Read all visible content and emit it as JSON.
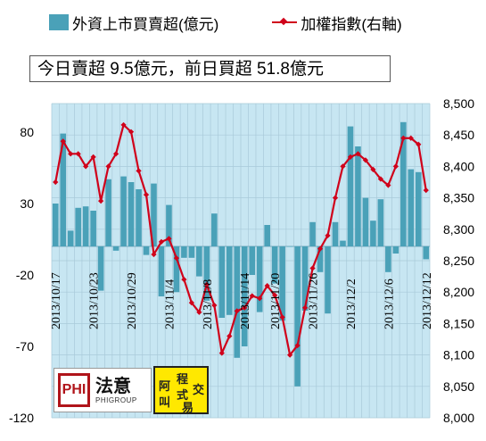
{
  "legend": {
    "bar_label": "外資上市買賣超(億元)",
    "line_label": "加權指數(右軸)"
  },
  "subtitle": "今日賣超 9.5億元，前日買超 51.8億元",
  "logos": {
    "phigroup_mark": "PHI",
    "phigroup_cn": "法意",
    "phigroup_en": "PHIGROUP",
    "exchange_chars": [
      "阿",
      "叫",
      "程",
      "式",
      "交",
      "易"
    ]
  },
  "colors": {
    "bar": "#4aa1b8",
    "line": "#d0021b",
    "plot_bg": "#c7e6f2",
    "grid": "#a9cad9"
  },
  "chart_data": {
    "type": "bar+line",
    "x_labels_shown": [
      "2013/10/17",
      "2013/10/23",
      "2013/10/29",
      "2013/11/4",
      "2013/11/8",
      "2013/11/14",
      "2013/11/20",
      "2013/11/26",
      "2013/12/2",
      "2013/12/6",
      "2013/12/12"
    ],
    "left_axis": {
      "ylim": [
        -120,
        100
      ],
      "ticks": [
        -120,
        -70,
        -20,
        30,
        80
      ]
    },
    "right_axis": {
      "ylim": [
        8000,
        8500
      ],
      "ticks": [
        "8,000",
        "8,050",
        "8,100",
        "8,150",
        "8,200",
        "8,250",
        "8,300",
        "8,350",
        "8,400",
        "8,450",
        "8,500"
      ]
    },
    "series": [
      {
        "type": "bar",
        "axis": "left",
        "name": "外資上市買賣超(億元)",
        "values": [
          30,
          79,
          11,
          27,
          28,
          25,
          -31,
          47,
          -3,
          49,
          45,
          40,
          -6,
          44,
          -35,
          29,
          -32,
          -8,
          -8,
          -21,
          -38,
          23,
          -50,
          -48,
          -78,
          -70,
          -20,
          -46,
          15,
          -26,
          -52,
          0,
          -98,
          -45,
          17,
          -18,
          -47,
          17,
          4,
          84,
          70,
          34,
          18,
          33,
          -18,
          -5,
          87,
          54,
          52,
          -9
        ]
      },
      {
        "type": "line",
        "axis": "right",
        "name": "加權指數(右軸)",
        "values": [
          8375,
          8440,
          8420,
          8420,
          8400,
          8415,
          8345,
          8400,
          8420,
          8466,
          8455,
          8393,
          8355,
          8260,
          8280,
          8285,
          8254,
          8220,
          8183,
          8168,
          8212,
          8179,
          8103,
          8130,
          8170,
          8175,
          8194,
          8190,
          8210,
          8195,
          8160,
          8100,
          8115,
          8175,
          8238,
          8269,
          8290,
          8350,
          8400,
          8415,
          8420,
          8410,
          8395,
          8380,
          8370,
          8400,
          8445,
          8445,
          8435,
          8362
        ]
      }
    ]
  }
}
